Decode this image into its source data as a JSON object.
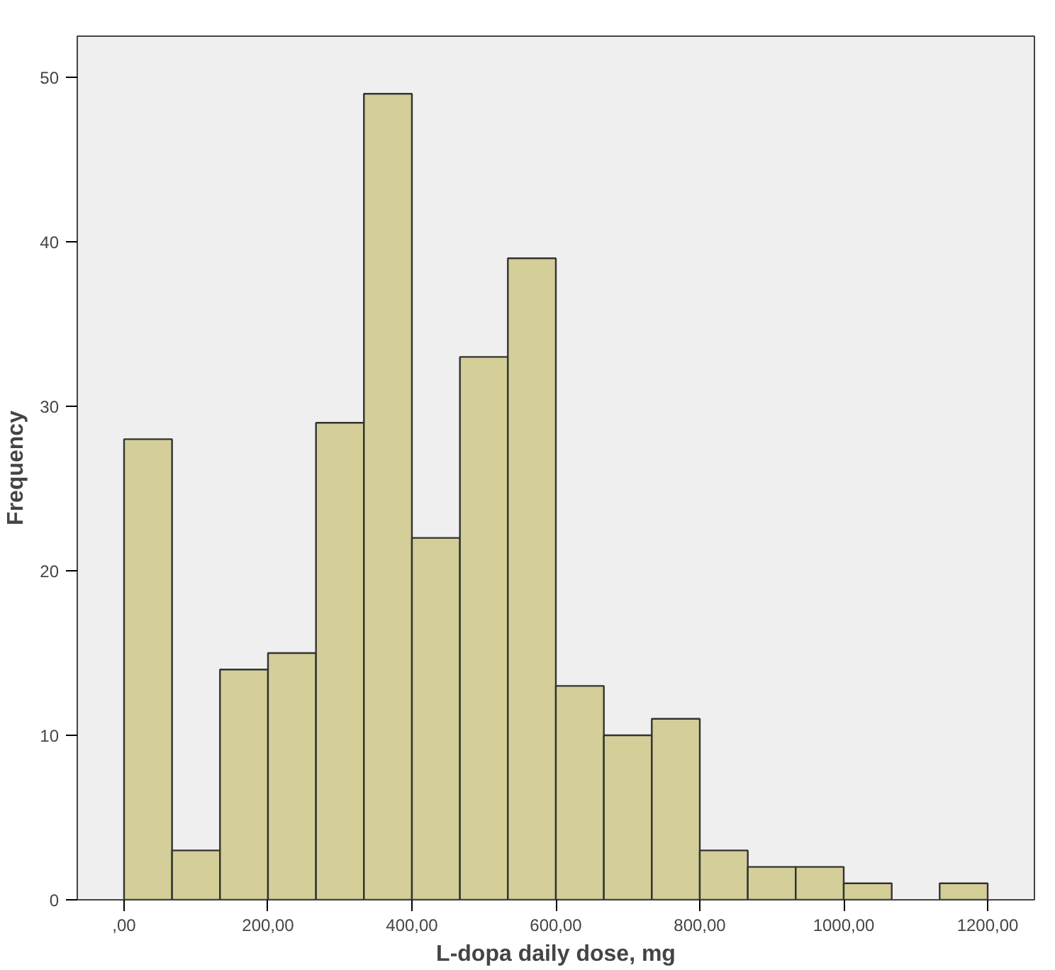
{
  "chart_data": {
    "type": "histogram",
    "xlabel": "L-dopa daily dose, mg",
    "ylabel": "Frequency",
    "bins": [
      0,
      66.7,
      133.3,
      200,
      266.7,
      333.3,
      400,
      466.7,
      533.3,
      600,
      666.7,
      733.3,
      800,
      866.7,
      933.3,
      1000,
      1066.7,
      1133.3,
      1200
    ],
    "values": [
      28,
      3,
      14,
      15,
      29,
      49,
      22,
      33,
      39,
      13,
      10,
      11,
      3,
      2,
      2,
      1,
      0,
      1
    ],
    "color": "#d4cf98",
    "xlim": [
      -65,
      1265
    ],
    "ylim": [
      0,
      52.5
    ],
    "xticks": [
      {
        "value": 0,
        "label": ",00"
      },
      {
        "value": 200,
        "label": "200,00"
      },
      {
        "value": 400,
        "label": "400,00"
      },
      {
        "value": 600,
        "label": "600,00"
      },
      {
        "value": 800,
        "label": "800,00"
      },
      {
        "value": 1000,
        "label": "1000,00"
      },
      {
        "value": 1200,
        "label": "1200,00"
      }
    ],
    "yticks": [
      0,
      10,
      20,
      30,
      40,
      50
    ],
    "grid": false
  }
}
